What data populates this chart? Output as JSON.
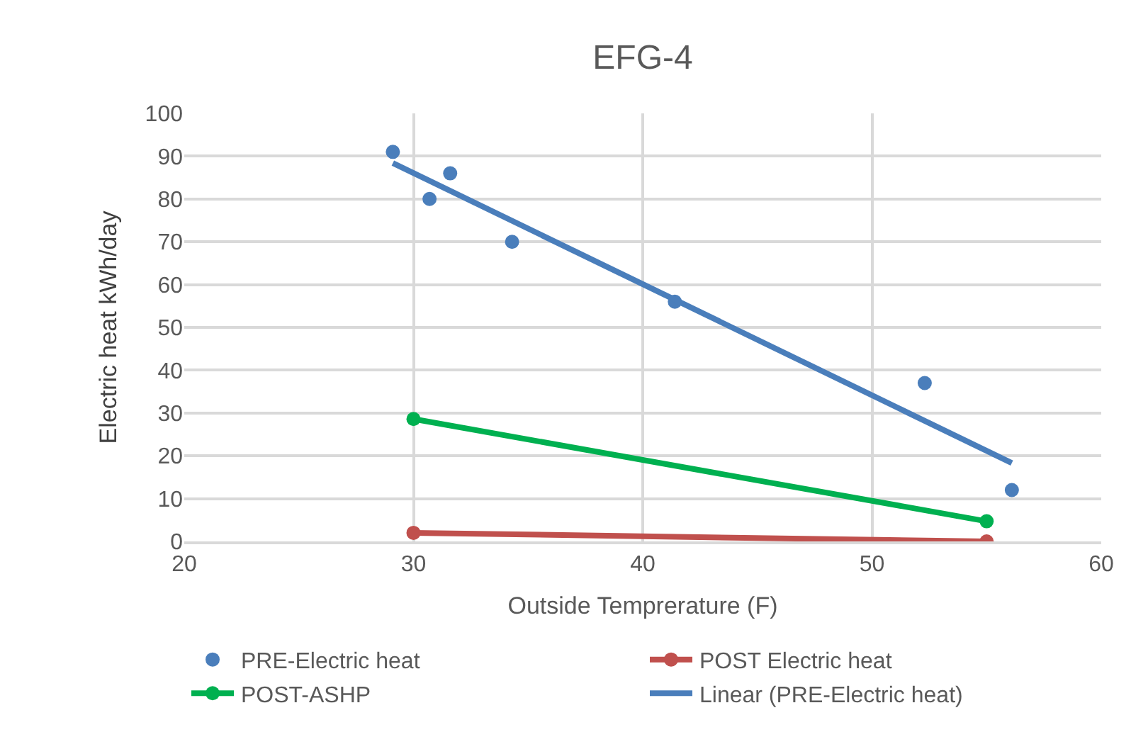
{
  "chart_data": {
    "type": "scatter",
    "title": "EFG-4",
    "xlabel": "Outside Temprerature (F)",
    "ylabel": "Electric heat kWh/day",
    "xlim": [
      20,
      60
    ],
    "xticks": [
      20,
      30,
      40,
      50,
      60
    ],
    "ylim": [
      0,
      100
    ],
    "yticks": [
      0,
      10,
      20,
      30,
      40,
      50,
      60,
      70,
      80,
      90,
      100
    ],
    "grid": true,
    "legend": "bottom",
    "series": [
      {
        "name": "PRE-Electric heat",
        "marker": "circle",
        "color": "#4a7ebb",
        "x": [
          29.1,
          30.7,
          31.6,
          34.3,
          41.4,
          52.3,
          56.1
        ],
        "values": [
          91,
          80,
          86,
          70,
          56,
          37,
          12
        ]
      },
      {
        "name": "POST Electric heat",
        "type": "line",
        "marker": "circle",
        "color": "#c0504d",
        "x": [
          30,
          55
        ],
        "values": [
          2,
          0
        ]
      },
      {
        "name": "POST-ASHP",
        "type": "line",
        "marker": "circle",
        "color": "#00b050",
        "x": [
          30,
          55
        ],
        "values": [
          28.6,
          4.7
        ]
      },
      {
        "name": "Linear (PRE-Electric heat)",
        "type": "line",
        "marker": "none",
        "color": "#4a7ebb",
        "x": [
          29.1,
          56.1
        ],
        "values": [
          88.4,
          18.3
        ]
      }
    ]
  }
}
